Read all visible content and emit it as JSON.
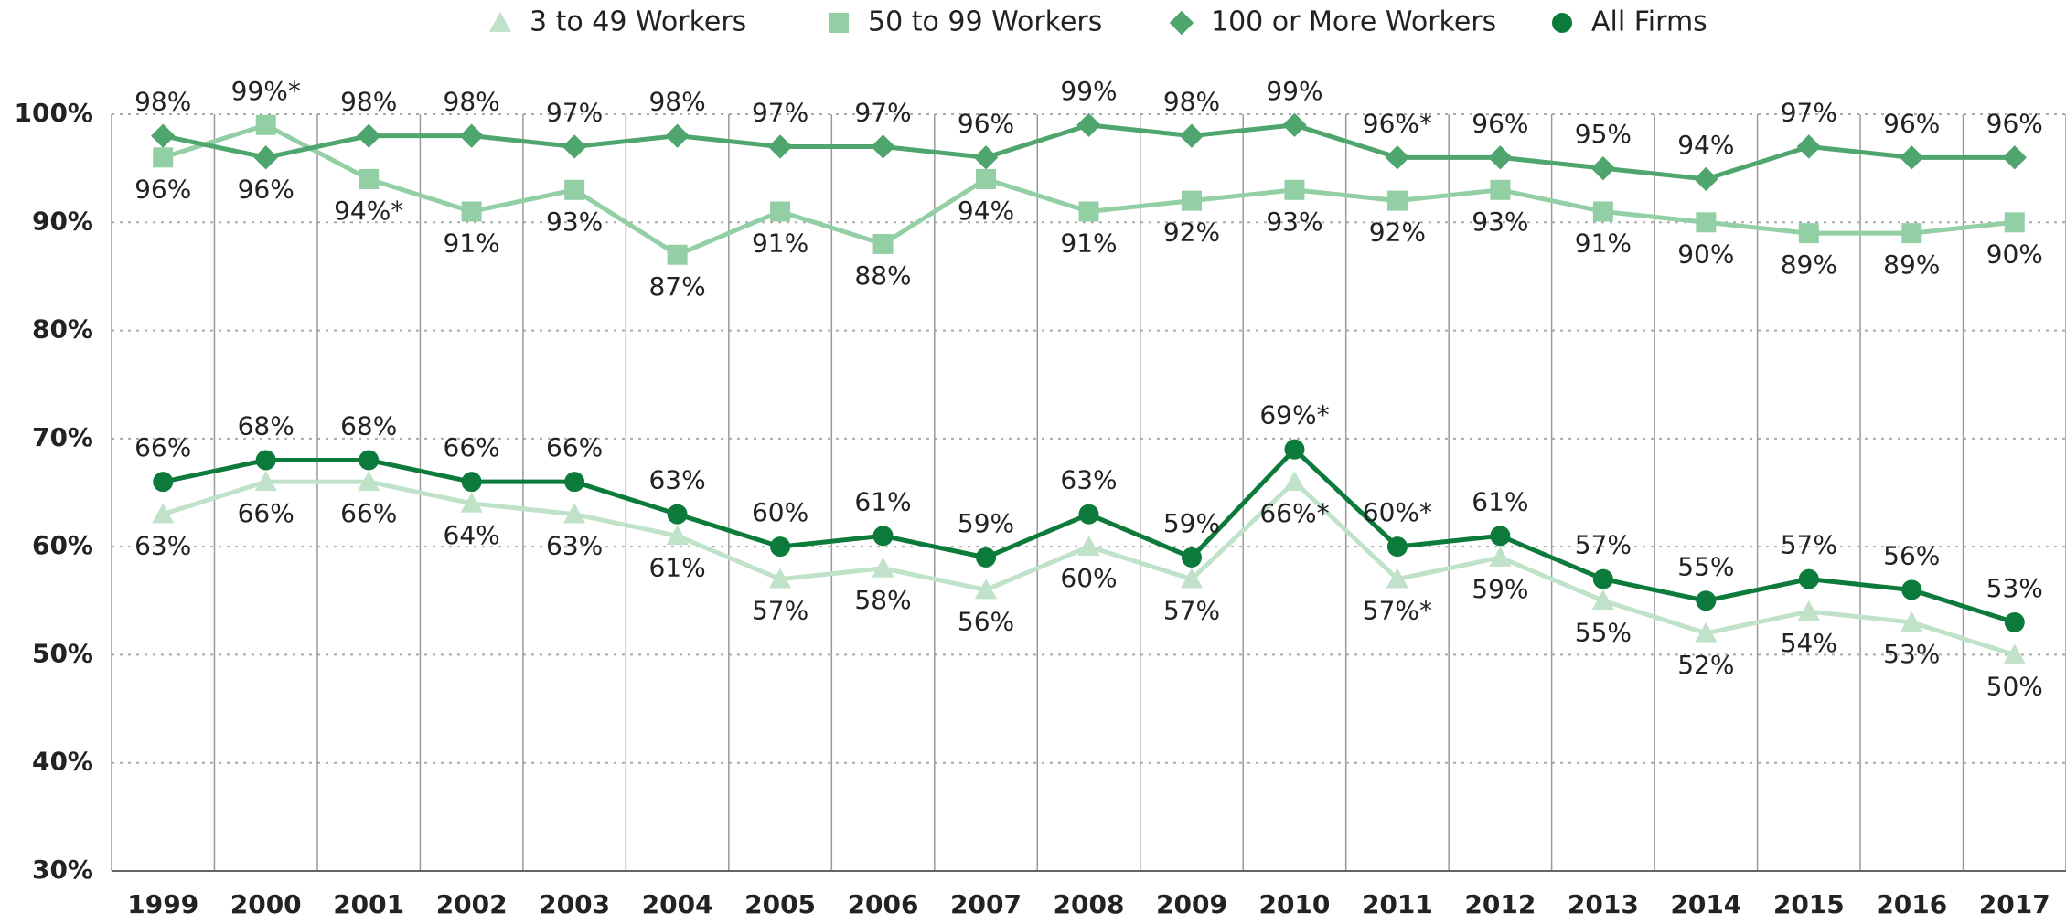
{
  "chart_data": {
    "type": "line",
    "categories": [
      "1999",
      "2000",
      "2001",
      "2002",
      "2003",
      "2004",
      "2005",
      "2006",
      "2007",
      "2008",
      "2009",
      "2010",
      "2011",
      "2012",
      "2013",
      "2014",
      "2015",
      "2016",
      "2017"
    ],
    "series": [
      {
        "name": "3 to 49 Workers",
        "color": "#bfe2c9",
        "marker": "triangle",
        "values": [
          63,
          66,
          66,
          64,
          63,
          61,
          57,
          58,
          56,
          60,
          57,
          66,
          57,
          59,
          55,
          52,
          54,
          53,
          50
        ],
        "value_labels": [
          "63%",
          "66%",
          "66%",
          "64%",
          "63%",
          "61%",
          "57%",
          "58%",
          "56%",
          "60%",
          "57%",
          "66%*",
          "57%*",
          "59%",
          "55%",
          "52%",
          "54%",
          "53%",
          "50%"
        ]
      },
      {
        "name": "50 to 99 Workers",
        "color": "#93cfa5",
        "marker": "square",
        "values": [
          96,
          99,
          94,
          91,
          93,
          87,
          91,
          88,
          94,
          91,
          92,
          93,
          92,
          93,
          91,
          90,
          89,
          89,
          90
        ],
        "value_labels": [
          "96%",
          "99%*",
          "94%*",
          "91%",
          "93%",
          "87%",
          "91%",
          "88%",
          "94%",
          "91%",
          "92%",
          "93%",
          "92%",
          "93%",
          "91%",
          "90%",
          "89%",
          "89%",
          "90%"
        ]
      },
      {
        "name": "100 or More Workers",
        "color": "#4ea56d",
        "marker": "diamond",
        "values": [
          98,
          96,
          98,
          98,
          97,
          98,
          97,
          97,
          96,
          99,
          98,
          99,
          96,
          96,
          95,
          94,
          97,
          96,
          96
        ],
        "value_labels": [
          "98%",
          "96%",
          "98%",
          "98%",
          "97%",
          "98%",
          "97%",
          "97%",
          "96%",
          "99%",
          "98%",
          "99%",
          "96%*",
          "96%",
          "95%",
          "94%",
          "97%",
          "96%",
          "96%"
        ]
      },
      {
        "name": "All Firms",
        "color": "#0b7a3b",
        "marker": "circle",
        "values": [
          66,
          68,
          68,
          66,
          66,
          63,
          60,
          61,
          59,
          63,
          59,
          69,
          60,
          61,
          57,
          55,
          57,
          56,
          53
        ],
        "value_labels": [
          "66%",
          "68%",
          "68%",
          "66%",
          "66%",
          "63%",
          "60%",
          "61%",
          "59%",
          "63%",
          "59%",
          "69%*",
          "60%*",
          "61%",
          "57%",
          "55%",
          "57%",
          "56%",
          "53%"
        ]
      }
    ],
    "ylim": [
      30,
      100
    ],
    "yticks": [
      {
        "value": 30,
        "label": "30%"
      },
      {
        "value": 40,
        "label": "40%"
      },
      {
        "value": 50,
        "label": "50%"
      },
      {
        "value": 60,
        "label": "60%"
      },
      {
        "value": 70,
        "label": "70%"
      },
      {
        "value": 80,
        "label": "80%"
      },
      {
        "value": 90,
        "label": "90%"
      },
      {
        "value": 100,
        "label": "100%"
      }
    ],
    "grid": true,
    "legend": "top"
  }
}
